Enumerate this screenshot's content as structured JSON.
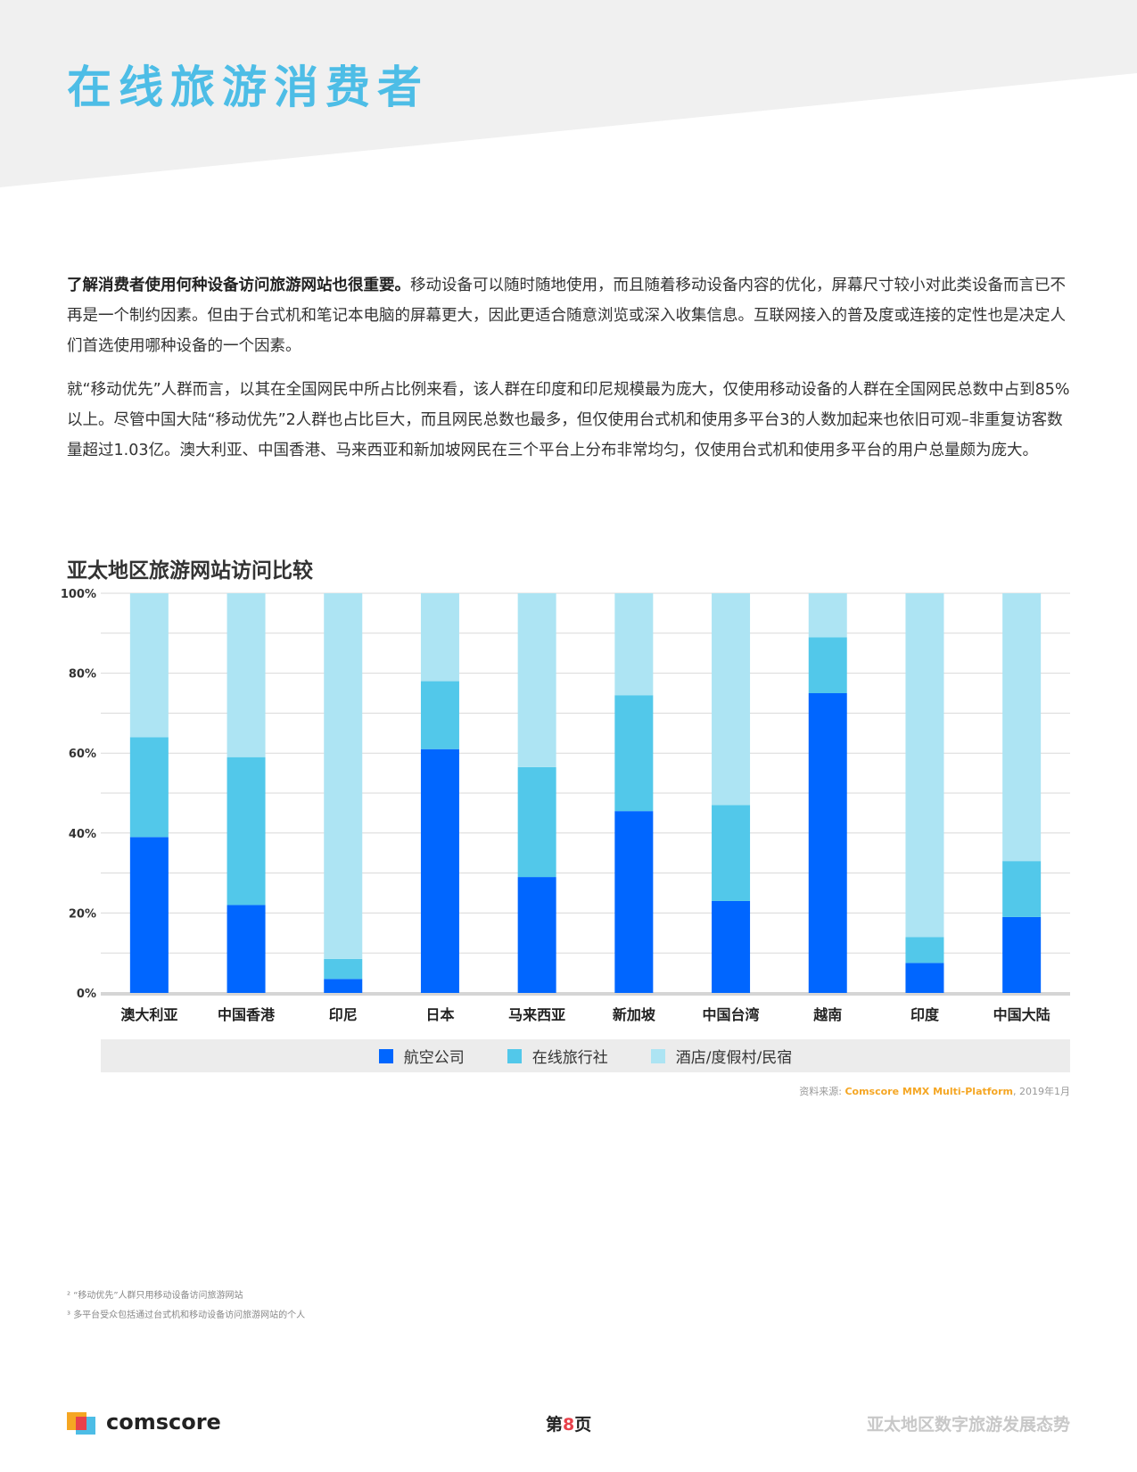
{
  "header": {
    "title": "在线旅游消费者"
  },
  "body": {
    "p1_lead": "了解消费者使用何种设备访问旅游网站也很重要。",
    "p1_rest": "移动设备可以随时随地使用，而且随着移动设备内容的优化，屏幕尺寸较小对此类设备而言已不再是一个制约因素。但由于台式机和笔记本电脑的屏幕更大，因此更适合随意浏览或深入收集信息。互联网接入的普及度或连接的定性也是决定人们首选使用哪种设备的一个因素。",
    "p2": "就“移动优先”人群而言，以其在全国网民中所占比例来看，该人群在印度和印尼规模最为庞大，仅使用移动设备的人群在全国网民总数中占到85%以上。尽管中国大陆“移动优先”2人群也占比巨大，而且网民总数也最多，但仅使用台式机和使用多平台3的人数加起来也依旧可观–非重复访客数量超过1.03亿。澳大利亚、中国香港、马来西亚和新加坡网民在三个平台上分布非常均匀，仅使用台式机和使用多平台的用户总量颇为庞大。"
  },
  "chart_data": {
    "type": "bar",
    "stacked": true,
    "title": "亚太地区旅游网站访问比较",
    "categories": [
      "澳大利亚",
      "中国香港",
      "印尼",
      "日本",
      "马来西亚",
      "新加坡",
      "中国台湾",
      "越南",
      "印度",
      "中国大陆"
    ],
    "series": [
      {
        "name": "航空公司",
        "color": "#0066ff",
        "values": [
          39,
          22,
          3.5,
          61,
          29,
          45.5,
          23,
          75,
          7.5,
          19
        ]
      },
      {
        "name": "在线旅行社",
        "color": "#52c8ea",
        "values": [
          25,
          37,
          5,
          17,
          27.5,
          29,
          24,
          14,
          6.5,
          14
        ]
      },
      {
        "name": "酒店/度假村/民宿",
        "color": "#ade4f3",
        "values": [
          36,
          41,
          91.5,
          22,
          43.5,
          25.5,
          53,
          11,
          86,
          67
        ]
      }
    ],
    "xlabel": "",
    "ylabel": "",
    "ylim": [
      0,
      100
    ],
    "yticks": [
      "0%",
      "20%",
      "40%",
      "60%",
      "80%",
      "100%"
    ],
    "grid": true,
    "legend": "bottom"
  },
  "source": {
    "prefix": "资料来源: ",
    "name": "Comscore MMX Multi-Platform",
    "suffix": ", 2019年1月"
  },
  "footnotes": [
    "² “移动优先”人群只用移动设备访问旅游网站",
    "³ 多平台受众包括通过台式机和移动设备访问旅游网站的个人"
  ],
  "footer": {
    "brand": "comscore",
    "page_prefix": "第",
    "page_num": "8",
    "page_suffix": "页",
    "report_title": "亚太地区数字旅游发展态势"
  }
}
